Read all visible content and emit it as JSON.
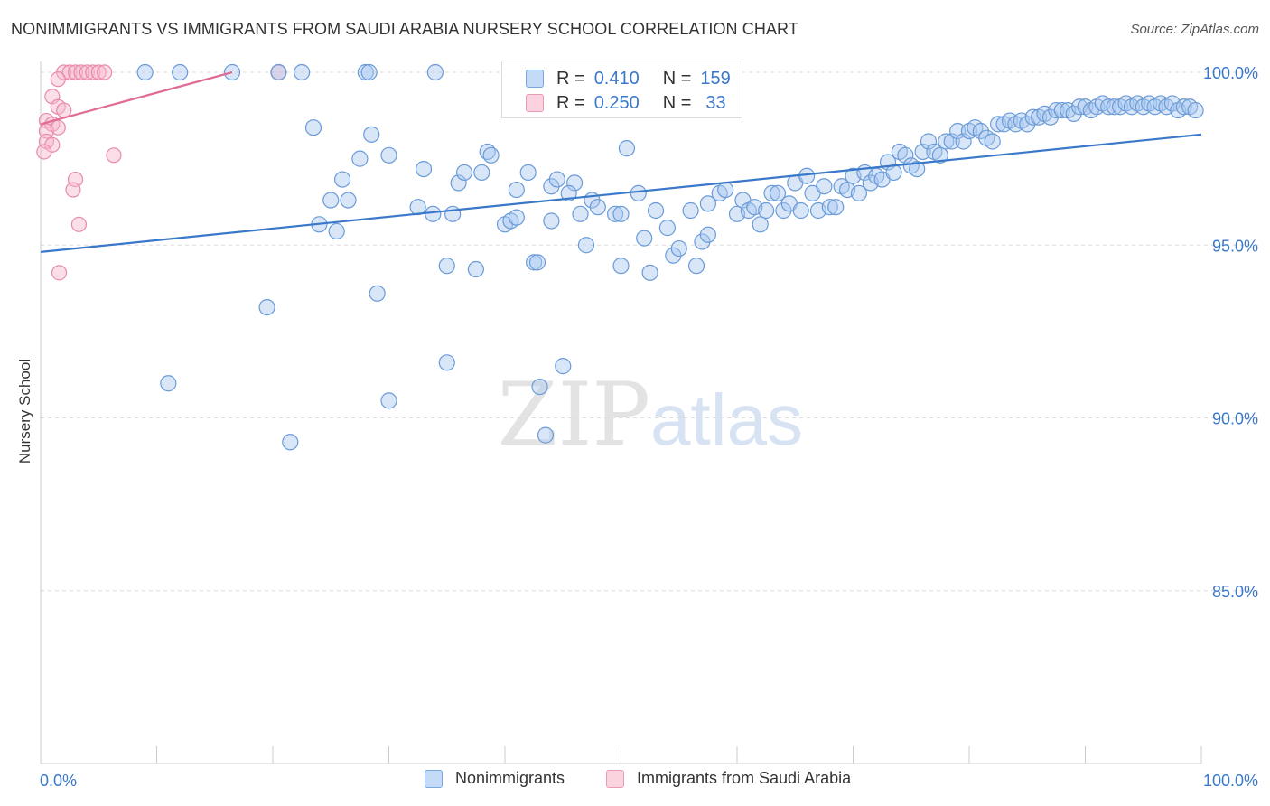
{
  "title": "NONIMMIGRANTS VS IMMIGRANTS FROM SAUDI ARABIA NURSERY SCHOOL CORRELATION CHART",
  "source": "Source: ZipAtlas.com",
  "watermark": {
    "zip": "ZIP",
    "atlas": "atlas"
  },
  "colors": {
    "blue": "#3a78c9",
    "pink": "#e06c93",
    "blue_fill": "#a8c8f0",
    "pink_fill": "#f6b8cc"
  },
  "legend": {
    "rows": [
      {
        "r_label": "R =",
        "r_value": "0.410",
        "n_label": "N =",
        "n_value": "159"
      },
      {
        "r_label": "R =",
        "r_value": "0.250",
        "n_label": "N =",
        "n_value": "33"
      }
    ]
  },
  "bottom_legend": [
    "Nonimmigrants",
    "Immigrants from Saudi Arabia"
  ],
  "chart_data": {
    "type": "scatter",
    "title": "NONIMMIGRANTS VS IMMIGRANTS FROM SAUDI ARABIA NURSERY SCHOOL CORRELATION CHART",
    "xlabel": "",
    "ylabel": "Nursery School",
    "xlim": [
      0,
      100
    ],
    "ylim": [
      80.5,
      100.4
    ],
    "x_tick_labels": [
      "0.0%",
      "100.0%"
    ],
    "y_ticks": [
      85,
      90,
      95,
      100
    ],
    "y_tick_labels": [
      "85.0%",
      "90.0%",
      "95.0%",
      "100.0%"
    ],
    "grid": true,
    "series": [
      {
        "name": "Nonimmigrants",
        "R": 0.41,
        "N": 159,
        "trend": {
          "x": [
            0,
            100
          ],
          "y": [
            94.8,
            98.2
          ]
        },
        "points": [
          [
            9,
            100
          ],
          [
            12,
            100
          ],
          [
            16.5,
            100
          ],
          [
            20.5,
            100
          ],
          [
            22.5,
            100
          ],
          [
            28,
            100
          ],
          [
            28.3,
            100
          ],
          [
            34,
            100
          ],
          [
            23.5,
            98.4
          ],
          [
            28.5,
            98.2
          ],
          [
            30,
            97.6
          ],
          [
            27.5,
            97.5
          ],
          [
            26,
            96.9
          ],
          [
            33,
            97.2
          ],
          [
            25,
            96.3
          ],
          [
            26.5,
            96.3
          ],
          [
            24,
            95.6
          ],
          [
            25.5,
            95.4
          ],
          [
            32.5,
            96.1
          ],
          [
            33.8,
            95.9
          ],
          [
            35.5,
            95.9
          ],
          [
            36,
            96.8
          ],
          [
            36.5,
            97.1
          ],
          [
            38,
            97.1
          ],
          [
            38.5,
            97.7
          ],
          [
            38.8,
            97.6
          ],
          [
            41,
            96.6
          ],
          [
            40,
            95.6
          ],
          [
            40.5,
            95.7
          ],
          [
            41,
            95.8
          ],
          [
            42,
            97.1
          ],
          [
            44,
            96.7
          ],
          [
            44.5,
            96.9
          ],
          [
            46,
            96.8
          ],
          [
            44,
            95.7
          ],
          [
            35,
            94.4
          ],
          [
            37.5,
            94.3
          ],
          [
            42.5,
            94.5
          ],
          [
            42.8,
            94.5
          ],
          [
            47,
            95.0
          ],
          [
            46.5,
            95.9
          ],
          [
            45.5,
            96.5
          ],
          [
            47.5,
            96.3
          ],
          [
            48,
            96.1
          ],
          [
            49.5,
            95.9
          ],
          [
            50,
            95.9
          ],
          [
            51.5,
            96.5
          ],
          [
            50.5,
            97.8
          ],
          [
            53,
            96.0
          ],
          [
            54,
            95.5
          ],
          [
            52,
            95.2
          ],
          [
            50,
            94.4
          ],
          [
            52.5,
            94.2
          ],
          [
            54.5,
            94.7
          ],
          [
            55,
            94.9
          ],
          [
            56.5,
            94.4
          ],
          [
            57,
            95.1
          ],
          [
            57.5,
            95.3
          ],
          [
            56,
            96.0
          ],
          [
            57.5,
            96.2
          ],
          [
            58.5,
            96.5
          ],
          [
            59,
            96.6
          ],
          [
            60,
            95.9
          ],
          [
            60.5,
            96.3
          ],
          [
            61,
            96.0
          ],
          [
            61.5,
            96.1
          ],
          [
            62,
            95.6
          ],
          [
            62.5,
            96.0
          ],
          [
            63,
            96.5
          ],
          [
            63.5,
            96.5
          ],
          [
            64,
            96.0
          ],
          [
            64.5,
            96.2
          ],
          [
            65,
            96.8
          ],
          [
            65.5,
            96.0
          ],
          [
            66,
            97.0
          ],
          [
            66.5,
            96.5
          ],
          [
            67,
            96.0
          ],
          [
            67.5,
            96.7
          ],
          [
            68,
            96.1
          ],
          [
            68.5,
            96.1
          ],
          [
            69,
            96.7
          ],
          [
            69.5,
            96.6
          ],
          [
            70,
            97.0
          ],
          [
            70.5,
            96.5
          ],
          [
            71,
            97.1
          ],
          [
            71.5,
            96.8
          ],
          [
            72,
            97.0
          ],
          [
            72.5,
            96.9
          ],
          [
            73,
            97.4
          ],
          [
            73.5,
            97.1
          ],
          [
            74,
            97.7
          ],
          [
            74.5,
            97.6
          ],
          [
            75,
            97.3
          ],
          [
            75.5,
            97.2
          ],
          [
            76,
            97.7
          ],
          [
            76.5,
            98.0
          ],
          [
            77,
            97.7
          ],
          [
            77.5,
            97.6
          ],
          [
            78,
            98.0
          ],
          [
            78.5,
            98.0
          ],
          [
            79,
            98.3
          ],
          [
            79.5,
            98.0
          ],
          [
            80,
            98.3
          ],
          [
            80.5,
            98.4
          ],
          [
            81,
            98.3
          ],
          [
            81.5,
            98.1
          ],
          [
            82,
            98.0
          ],
          [
            82.5,
            98.5
          ],
          [
            83,
            98.5
          ],
          [
            83.5,
            98.6
          ],
          [
            84,
            98.5
          ],
          [
            84.5,
            98.6
          ],
          [
            85,
            98.5
          ],
          [
            85.5,
            98.7
          ],
          [
            86,
            98.7
          ],
          [
            86.5,
            98.8
          ],
          [
            87,
            98.7
          ],
          [
            87.5,
            98.9
          ],
          [
            88,
            98.9
          ],
          [
            88.5,
            98.9
          ],
          [
            89,
            98.8
          ],
          [
            89.5,
            99.0
          ],
          [
            90,
            99.0
          ],
          [
            90.5,
            98.9
          ],
          [
            91,
            99.0
          ],
          [
            91.5,
            99.1
          ],
          [
            92,
            99.0
          ],
          [
            92.5,
            99.0
          ],
          [
            93,
            99.0
          ],
          [
            93.5,
            99.1
          ],
          [
            94,
            99.0
          ],
          [
            94.5,
            99.1
          ],
          [
            95,
            99.0
          ],
          [
            95.5,
            99.1
          ],
          [
            96,
            99.0
          ],
          [
            96.5,
            99.1
          ],
          [
            97,
            99.0
          ],
          [
            97.5,
            99.1
          ],
          [
            98,
            98.9
          ],
          [
            98.5,
            99.0
          ],
          [
            99,
            99.0
          ],
          [
            99.5,
            98.9
          ],
          [
            19.5,
            93.2
          ],
          [
            29,
            93.6
          ],
          [
            35,
            91.6
          ],
          [
            43,
            90.9
          ],
          [
            11,
            91.0
          ],
          [
            30,
            90.5
          ],
          [
            21.5,
            89.3
          ],
          [
            43.5,
            89.5
          ],
          [
            45,
            91.5
          ]
        ]
      },
      {
        "name": "Immigrants from Saudi Arabia",
        "R": 0.25,
        "N": 33,
        "trend": {
          "x": [
            0,
            16.5
          ],
          "y": [
            98.5,
            100.0
          ]
        },
        "points": [
          [
            2,
            100
          ],
          [
            2.5,
            100
          ],
          [
            3,
            100
          ],
          [
            3.5,
            100
          ],
          [
            4,
            100
          ],
          [
            4.5,
            100
          ],
          [
            5,
            100
          ],
          [
            5.5,
            100
          ],
          [
            20.5,
            100
          ],
          [
            1.5,
            99.8
          ],
          [
            1,
            99.3
          ],
          [
            1.5,
            99.0
          ],
          [
            2,
            98.9
          ],
          [
            0.5,
            98.6
          ],
          [
            1,
            98.5
          ],
          [
            0.5,
            98.3
          ],
          [
            1.5,
            98.4
          ],
          [
            0.5,
            98.0
          ],
          [
            1,
            97.9
          ],
          [
            0.3,
            97.7
          ],
          [
            6.3,
            97.6
          ],
          [
            3,
            96.9
          ],
          [
            2.8,
            96.6
          ],
          [
            3.3,
            95.6
          ],
          [
            1.6,
            94.2
          ]
        ]
      }
    ]
  }
}
